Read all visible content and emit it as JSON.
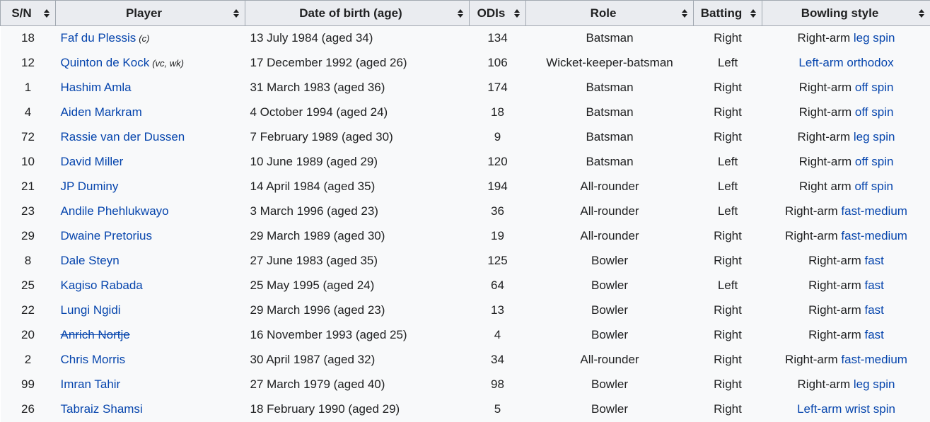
{
  "headers": [
    "S/N",
    "Player",
    "Date of birth (age)",
    "ODIs",
    "Role",
    "Batting",
    "Bowling style"
  ],
  "rows": [
    {
      "sn": "18",
      "player": "Faf du Plessis",
      "note": "(c)",
      "strike": false,
      "dob": "13 July 1984 (aged 34)",
      "odis": "134",
      "role": "Batsman",
      "batting": "Right",
      "bowl_plain": "Right-arm ",
      "bowl_link": "leg spin"
    },
    {
      "sn": "12",
      "player": "Quinton de Kock",
      "note": "(vc, wk)",
      "strike": false,
      "dob": "17 December 1992 (aged 26)",
      "odis": "106",
      "role": "Wicket-keeper-batsman",
      "batting": "Left",
      "bowl_plain": "",
      "bowl_link": "Left-arm orthodox"
    },
    {
      "sn": "1",
      "player": "Hashim Amla",
      "note": "",
      "strike": false,
      "dob": "31 March 1983 (aged 36)",
      "odis": "174",
      "role": "Batsman",
      "batting": "Right",
      "bowl_plain": "Right-arm ",
      "bowl_link": "off spin"
    },
    {
      "sn": "4",
      "player": "Aiden Markram",
      "note": "",
      "strike": false,
      "dob": "4 October 1994 (aged 24)",
      "odis": "18",
      "role": "Batsman",
      "batting": "Right",
      "bowl_plain": "Right-arm ",
      "bowl_link": "off spin"
    },
    {
      "sn": "72",
      "player": "Rassie van der Dussen",
      "note": "",
      "strike": false,
      "dob": "7 February 1989 (aged 30)",
      "odis": "9",
      "role": "Batsman",
      "batting": "Right",
      "bowl_plain": "Right-arm ",
      "bowl_link": "leg spin"
    },
    {
      "sn": "10",
      "player": "David Miller",
      "note": "",
      "strike": false,
      "dob": "10 June 1989 (aged 29)",
      "odis": "120",
      "role": "Batsman",
      "batting": "Left",
      "bowl_plain": "Right-arm ",
      "bowl_link": "off spin"
    },
    {
      "sn": "21",
      "player": "JP Duminy",
      "note": "",
      "strike": false,
      "dob": "14 April 1984 (aged 35)",
      "odis": "194",
      "role": "All-rounder",
      "batting": "Left",
      "bowl_plain": "Right arm ",
      "bowl_link": "off spin"
    },
    {
      "sn": "23",
      "player": "Andile Phehlukwayo",
      "note": "",
      "strike": false,
      "dob": "3 March 1996 (aged 23)",
      "odis": "36",
      "role": "All-rounder",
      "batting": "Left",
      "bowl_plain": "Right-arm ",
      "bowl_link": "fast-medium"
    },
    {
      "sn": "29",
      "player": "Dwaine Pretorius",
      "note": "",
      "strike": false,
      "dob": "29 March 1989 (aged 30)",
      "odis": "19",
      "role": "All-rounder",
      "batting": "Right",
      "bowl_plain": "Right-arm ",
      "bowl_link": "fast-medium"
    },
    {
      "sn": "8",
      "player": "Dale Steyn",
      "note": "",
      "strike": false,
      "dob": "27 June 1983 (aged 35)",
      "odis": "125",
      "role": "Bowler",
      "batting": "Right",
      "bowl_plain": "Right-arm ",
      "bowl_link": "fast"
    },
    {
      "sn": "25",
      "player": "Kagiso Rabada",
      "note": "",
      "strike": false,
      "dob": "25 May 1995 (aged 24)",
      "odis": "64",
      "role": "Bowler",
      "batting": "Left",
      "bowl_plain": "Right-arm ",
      "bowl_link": "fast"
    },
    {
      "sn": "22",
      "player": "Lungi Ngidi",
      "note": "",
      "strike": false,
      "dob": "29 March 1996 (aged 23)",
      "odis": "13",
      "role": "Bowler",
      "batting": "Right",
      "bowl_plain": "Right-arm ",
      "bowl_link": "fast"
    },
    {
      "sn": "20",
      "player": "Anrich Nortje",
      "note": "",
      "strike": true,
      "dob": "16 November 1993 (aged 25)",
      "odis": "4",
      "role": "Bowler",
      "batting": "Right",
      "bowl_plain": "Right-arm ",
      "bowl_link": "fast"
    },
    {
      "sn": "2",
      "player": "Chris Morris",
      "note": "",
      "strike": false,
      "dob": "30 April 1987 (aged 32)",
      "odis": "34",
      "role": "All-rounder",
      "batting": "Right",
      "bowl_plain": "Right-arm ",
      "bowl_link": "fast-medium"
    },
    {
      "sn": "99",
      "player": "Imran Tahir",
      "note": "",
      "strike": false,
      "dob": "27 March 1979 (aged 40)",
      "odis": "98",
      "role": "Bowler",
      "batting": "Right",
      "bowl_plain": "Right-arm ",
      "bowl_link": "leg spin"
    },
    {
      "sn": "26",
      "player": "Tabraiz Shamsi",
      "note": "",
      "strike": false,
      "dob": "18 February 1990 (aged 29)",
      "odis": "5",
      "role": "Bowler",
      "batting": "Right",
      "bowl_plain": "",
      "bowl_link": "Left-arm wrist spin"
    }
  ]
}
